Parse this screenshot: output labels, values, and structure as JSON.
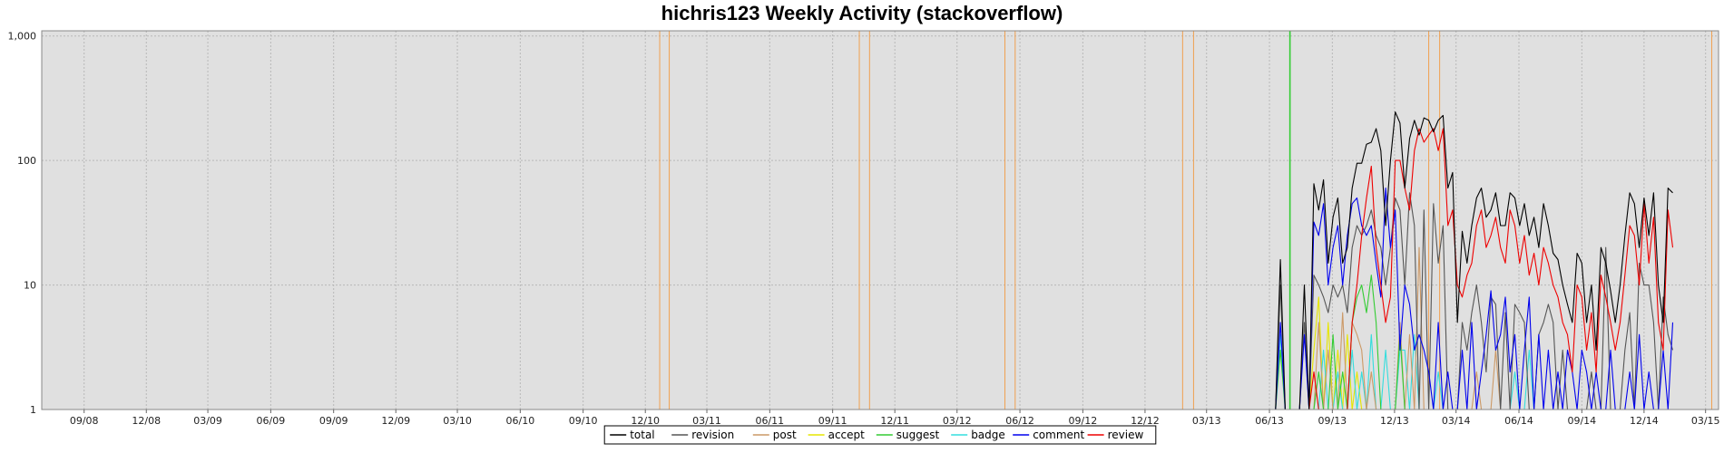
{
  "chart_data": {
    "type": "line",
    "title": "hichris123 Weekly Activity (stackoverflow)",
    "y_scale": "log",
    "ylim": [
      1,
      1100
    ],
    "y_ticks": [
      1,
      10,
      100,
      1000
    ],
    "y_tick_labels": [
      "1",
      "10",
      "100",
      "1,000"
    ],
    "x_range": [
      "2008-07-01",
      "2015-03-20"
    ],
    "x_ticks": [
      {
        "date": "2008-09-01",
        "label": "09/08"
      },
      {
        "date": "2008-12-01",
        "label": "12/08"
      },
      {
        "date": "2009-03-01",
        "label": "03/09"
      },
      {
        "date": "2009-06-01",
        "label": "06/09"
      },
      {
        "date": "2009-09-01",
        "label": "09/09"
      },
      {
        "date": "2009-12-01",
        "label": "12/09"
      },
      {
        "date": "2010-03-01",
        "label": "03/10"
      },
      {
        "date": "2010-06-01",
        "label": "06/10"
      },
      {
        "date": "2010-09-01",
        "label": "09/10"
      },
      {
        "date": "2010-12-01",
        "label": "12/10"
      },
      {
        "date": "2011-03-01",
        "label": "03/11"
      },
      {
        "date": "2011-06-01",
        "label": "06/11"
      },
      {
        "date": "2011-09-01",
        "label": "09/11"
      },
      {
        "date": "2011-12-01",
        "label": "12/11"
      },
      {
        "date": "2012-03-01",
        "label": "03/12"
      },
      {
        "date": "2012-06-01",
        "label": "06/12"
      },
      {
        "date": "2012-09-01",
        "label": "09/12"
      },
      {
        "date": "2012-12-01",
        "label": "12/12"
      },
      {
        "date": "2013-03-01",
        "label": "03/13"
      },
      {
        "date": "2013-06-01",
        "label": "06/13"
      },
      {
        "date": "2013-09-01",
        "label": "09/13"
      },
      {
        "date": "2013-12-01",
        "label": "12/13"
      },
      {
        "date": "2014-03-01",
        "label": "03/14"
      },
      {
        "date": "2014-06-01",
        "label": "06/14"
      },
      {
        "date": "2014-09-01",
        "label": "09/14"
      },
      {
        "date": "2014-12-01",
        "label": "12/14"
      },
      {
        "date": "2015-03-01",
        "label": "03/15"
      }
    ],
    "grid": true,
    "legend_position": "bottom-center",
    "background_color": "#e0e0e0",
    "event_markers": [
      {
        "date": "2010-12-22",
        "color": "#f0a050"
      },
      {
        "date": "2011-01-05",
        "color": "#f0a050"
      },
      {
        "date": "2011-10-10",
        "color": "#f0a050"
      },
      {
        "date": "2011-10-25",
        "color": "#f0a050"
      },
      {
        "date": "2012-05-10",
        "color": "#f0a050"
      },
      {
        "date": "2012-05-25",
        "color": "#f0a050"
      },
      {
        "date": "2013-01-25",
        "color": "#f0a050"
      },
      {
        "date": "2013-02-10",
        "color": "#f0a050"
      },
      {
        "date": "2013-07-01",
        "color": "#33cc33"
      },
      {
        "date": "2014-01-20",
        "color": "#f0a050"
      },
      {
        "date": "2014-02-05",
        "color": "#f0a050"
      },
      {
        "date": "2015-03-10",
        "color": "#f0a050"
      }
    ],
    "series": [
      {
        "name": "total",
        "color": "#000000",
        "start": "2013-06-17",
        "values": [
          16,
          1,
          1,
          1,
          1,
          10,
          1,
          65,
          40,
          70,
          15,
          35,
          50,
          15,
          20,
          60,
          95,
          95,
          135,
          140,
          180,
          120,
          30,
          100,
          245,
          200,
          60,
          150,
          210,
          160,
          220,
          210,
          170,
          210,
          230,
          60,
          80,
          5,
          27,
          15,
          30,
          50,
          60,
          35,
          40,
          55,
          30,
          30,
          55,
          50,
          30,
          45,
          25,
          35,
          20,
          45,
          30,
          18,
          16,
          10,
          7,
          5,
          18,
          15,
          5,
          10,
          3,
          20,
          15,
          9,
          5,
          10,
          25,
          55,
          45,
          20,
          50,
          25,
          55,
          10,
          5,
          60,
          55
        ]
      },
      {
        "name": "revision",
        "color": "#555555",
        "start": "2013-06-17",
        "values": [
          10,
          1,
          1,
          1,
          1,
          5,
          1,
          12,
          10,
          8,
          6,
          10,
          8,
          10,
          6,
          20,
          30,
          25,
          30,
          40,
          25,
          20,
          10,
          20,
          50,
          40,
          10,
          55,
          30,
          1,
          40,
          1,
          45,
          15,
          30,
          1,
          1,
          1,
          5,
          3,
          6,
          10,
          5,
          2,
          8,
          7,
          1,
          6,
          1,
          7,
          6,
          5,
          1,
          1,
          4,
          5,
          7,
          5,
          1,
          3,
          1,
          1,
          1,
          1,
          1,
          2,
          1,
          1,
          20,
          1,
          1,
          1,
          3,
          6,
          1,
          15,
          10,
          10,
          5,
          1,
          8,
          4,
          3
        ]
      },
      {
        "name": "post",
        "color": "#cc9966",
        "start": "2013-06-17",
        "values": [
          1,
          1,
          1,
          1,
          1,
          1,
          1,
          1,
          5,
          1,
          3,
          1,
          1,
          6,
          1,
          5,
          4,
          3,
          1,
          2,
          1,
          1,
          1,
          1,
          1,
          5,
          1,
          4,
          1,
          20,
          1,
          1,
          1,
          1,
          1,
          1,
          1,
          1,
          1,
          1,
          1,
          2,
          1,
          1,
          1,
          3,
          1,
          1,
          1,
          1,
          1,
          1,
          1,
          1,
          1,
          1,
          1,
          1,
          1,
          1,
          1,
          1,
          1,
          1,
          1,
          1,
          1,
          1,
          1,
          1,
          1,
          1,
          1,
          1,
          1,
          1,
          1,
          1,
          1,
          1,
          1,
          1,
          1
        ]
      },
      {
        "name": "accept",
        "color": "#e6e600",
        "start": "2013-06-17",
        "values": [
          1,
          1,
          1,
          1,
          1,
          1,
          1,
          3,
          8,
          1,
          5,
          1,
          3,
          1,
          4,
          1,
          2,
          1,
          1,
          1,
          1,
          1,
          1,
          1,
          1,
          1,
          1,
          1,
          1,
          1,
          1,
          1,
          1,
          1,
          1,
          1,
          1,
          1,
          1,
          1,
          1,
          1,
          1,
          1,
          1,
          1,
          1,
          1,
          1,
          1,
          1,
          1,
          1,
          1,
          1,
          1,
          1,
          1,
          1,
          1,
          1,
          1,
          1,
          1,
          1,
          1,
          1,
          1,
          1,
          1,
          1,
          1,
          1,
          1,
          1,
          1,
          1,
          1,
          1,
          1,
          1,
          1,
          1
        ]
      },
      {
        "name": "suggest",
        "color": "#33cc33",
        "start": "2013-06-17",
        "values": [
          3,
          1,
          1,
          1,
          1,
          1,
          1,
          1,
          2,
          1,
          1,
          4,
          1,
          2,
          1,
          5,
          8,
          10,
          6,
          12,
          5,
          1,
          1,
          1,
          1,
          4,
          1,
          1,
          1,
          1,
          1,
          1,
          1,
          1,
          1,
          1,
          1,
          1,
          1,
          1,
          1,
          1,
          1,
          1,
          1,
          1,
          1,
          1,
          1,
          1,
          1,
          1,
          1,
          1,
          1,
          1,
          1,
          1,
          1,
          1,
          1,
          1,
          1,
          1,
          1,
          1,
          1,
          1,
          1,
          1,
          1,
          1,
          1,
          1,
          1,
          1,
          1,
          1,
          1,
          1,
          1,
          1,
          1
        ]
      },
      {
        "name": "badge",
        "color": "#33dddd",
        "start": "2013-06-17",
        "values": [
          4,
          1,
          1,
          1,
          1,
          1,
          1,
          1,
          1,
          3,
          1,
          1,
          2,
          1,
          1,
          3,
          1,
          2,
          1,
          4,
          1,
          1,
          3,
          1,
          1,
          3,
          3,
          1,
          4,
          1,
          1,
          1,
          1,
          2,
          1,
          1,
          1,
          1,
          1,
          1,
          1,
          1,
          1,
          1,
          1,
          1,
          1,
          1,
          1,
          2,
          1,
          1,
          3,
          1,
          1,
          1,
          1,
          1,
          1,
          1,
          1,
          1,
          1,
          1,
          1,
          1,
          1,
          1,
          1,
          1,
          1,
          1,
          1,
          1,
          1,
          1,
          1,
          1,
          1,
          1,
          1,
          1,
          1
        ]
      },
      {
        "name": "comment",
        "color": "#0000ee",
        "start": "2013-06-17",
        "values": [
          5,
          1,
          1,
          1,
          1,
          4,
          1,
          32,
          25,
          45,
          10,
          20,
          30,
          10,
          25,
          45,
          50,
          30,
          25,
          30,
          15,
          8,
          60,
          20,
          40,
          3,
          10,
          7,
          3,
          4,
          3,
          2,
          1,
          5,
          1,
          2,
          1,
          1,
          3,
          1,
          5,
          1,
          2,
          4,
          9,
          3,
          4,
          8,
          2,
          4,
          1,
          3,
          8,
          1,
          4,
          1,
          3,
          1,
          2,
          1,
          3,
          2,
          1,
          3,
          2,
          1,
          2,
          1,
          1,
          3,
          1,
          1,
          1,
          2,
          1,
          4,
          1,
          2,
          1,
          1,
          3,
          1,
          5
        ]
      },
      {
        "name": "review",
        "color": "#ee0000",
        "start": "2013-06-17",
        "values": [
          1,
          1,
          1,
          1,
          1,
          1,
          1,
          2,
          1,
          1,
          1,
          1,
          1,
          1,
          1,
          5,
          10,
          25,
          50,
          90,
          20,
          10,
          5,
          8,
          100,
          100,
          60,
          40,
          120,
          180,
          140,
          160,
          180,
          120,
          180,
          30,
          40,
          10,
          8,
          12,
          15,
          30,
          40,
          20,
          25,
          35,
          20,
          15,
          40,
          30,
          15,
          25,
          12,
          18,
          10,
          20,
          15,
          10,
          8,
          5,
          4,
          2,
          10,
          8,
          3,
          6,
          2,
          12,
          8,
          5,
          3,
          5,
          12,
          30,
          25,
          10,
          45,
          15,
          35,
          5,
          3,
          40,
          20
        ]
      }
    ]
  }
}
